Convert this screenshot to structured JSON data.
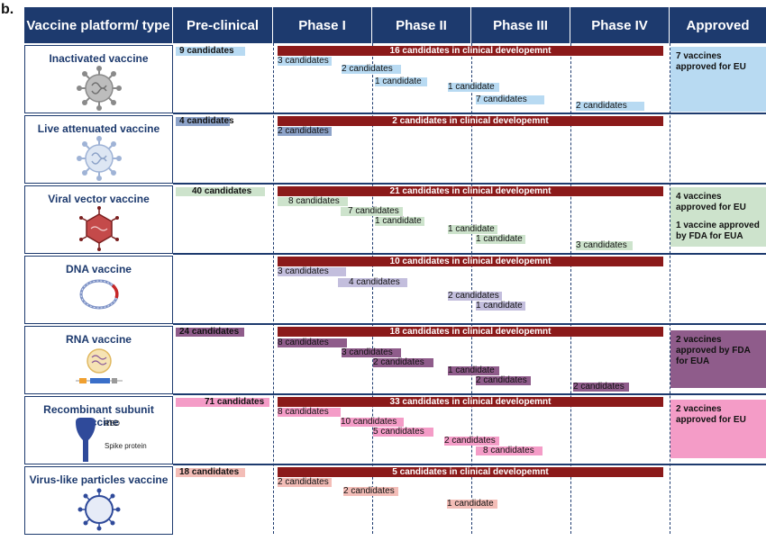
{
  "panel_label": "b.",
  "header": {
    "platform": "Vaccine platform/ type",
    "preclinical": "Pre-clinical",
    "phase1": "Phase I",
    "phase2": "Phase II",
    "phase3": "Phase III",
    "phase4": "Phase IV",
    "approved": "Approved"
  },
  "colors": {
    "header_bg": "#1d3a6e",
    "clinical_bar": "#8b1a1a",
    "inactivated": "#b8daf2",
    "live_attenuated": "#8da3c9",
    "viral_vector": "#cde3cc",
    "dna": "#c3bedd",
    "rna": "#8f5c8b",
    "recombinant": "#f49cc7",
    "vlp": "#f3bdb7"
  },
  "rows": [
    {
      "name": "Inactivated vaccine",
      "icon": "virus-icon",
      "preclinical": "9 candidates",
      "clinical": "16 candidates in clinical developemnt",
      "bars": [
        "3 candidates",
        "2 candidates",
        "1 candidate",
        "1 candidate",
        "7 candidates",
        "2 candidates"
      ],
      "approved": [
        "7 vaccines approved for EU"
      ]
    },
    {
      "name": "Live attenuated vaccine",
      "icon": "attenuated-virus-icon",
      "preclinical": "4 candidates",
      "clinical": "2 candidates in clinical developemnt",
      "bars": [
        "2 candidates"
      ],
      "approved": []
    },
    {
      "name": "Viral vector vaccine",
      "icon": "viral-vector-icon",
      "preclinical": "40 candidates",
      "clinical": "21 candidates in clinical developemnt",
      "bars": [
        "8 candidates",
        "7 candidates",
        "1 candidate",
        "1 candidate",
        "1 candidate",
        "3 candidates"
      ],
      "approved": [
        "4 vaccines approved for EU",
        "1 vaccine approved by FDA for EUA"
      ]
    },
    {
      "name": "DNA vaccine",
      "icon": "dna-plasmid-icon",
      "preclinical": "",
      "clinical": "10 candidates in clinical developemnt",
      "bars": [
        "3 candidates",
        "4 candidates",
        "2 candidates",
        "1 candidate"
      ],
      "approved": []
    },
    {
      "name": "RNA vaccine",
      "icon": "rna-nanoparticle-icon",
      "preclinical": "24 candidates",
      "clinical": "18 candidates in clinical developemnt",
      "bars": [
        "8 candidates",
        "3 candidates",
        "2 candidates",
        "1 candidate",
        "2 candidates",
        "2 candidates"
      ],
      "approved": [
        "2 vaccines approved by FDA for EUA"
      ]
    },
    {
      "name": "Recombinant subunit vaccine",
      "icon": "spike-protein-icon",
      "icon_labels": [
        "RBD",
        "Spike protein"
      ],
      "preclinical": "71 candidates",
      "clinical": "33 candidates in clinical developemnt",
      "bars": [
        "8 candidates",
        "10 candidates",
        "5 candidates",
        "2 candidates",
        "8 candidates"
      ],
      "approved": [
        "2 vaccines approved for EU"
      ]
    },
    {
      "name": "Virus-like particles vaccine",
      "icon": "vlp-icon",
      "preclinical": "18 candidates",
      "clinical": "5 candidates in clinical developemnt",
      "bars": [
        "2 candidates",
        "2 candidates",
        "1 candidate"
      ],
      "approved": []
    }
  ]
}
